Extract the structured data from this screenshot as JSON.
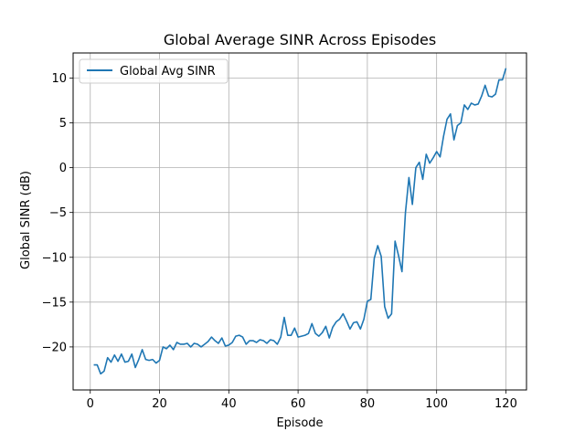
{
  "chart_data": {
    "type": "line",
    "title": "Global Average SINR Across Episodes",
    "xlabel": "Episode",
    "ylabel": "Global SINR (dB)",
    "xlim": [
      -4.95,
      125.95
    ],
    "ylim": [
      -24.8,
      12.8
    ],
    "xticks": [
      0,
      20,
      40,
      60,
      80,
      100,
      120
    ],
    "yticks": [
      -20,
      -15,
      -10,
      -5,
      0,
      5,
      10
    ],
    "grid": true,
    "legend": "top-left",
    "series": [
      {
        "name": "Global Avg SINR",
        "color": "#1f77b4",
        "x": [
          1,
          2,
          3,
          4,
          5,
          6,
          7,
          8,
          9,
          10,
          11,
          12,
          13,
          14,
          15,
          16,
          17,
          18,
          19,
          20,
          21,
          22,
          23,
          24,
          25,
          26,
          27,
          28,
          29,
          30,
          31,
          32,
          33,
          34,
          35,
          36,
          37,
          38,
          39,
          40,
          41,
          42,
          43,
          44,
          45,
          46,
          47,
          48,
          49,
          50,
          51,
          52,
          53,
          54,
          55,
          56,
          57,
          58,
          59,
          60,
          61,
          62,
          63,
          64,
          65,
          66,
          67,
          68,
          69,
          70,
          71,
          72,
          73,
          74,
          75,
          76,
          77,
          78,
          79,
          80,
          81,
          82,
          83,
          84,
          85,
          86,
          87,
          88,
          89,
          90,
          91,
          92,
          93,
          94,
          95,
          96,
          97,
          98,
          99,
          100,
          101,
          102,
          103,
          104,
          105,
          106,
          107,
          108,
          109,
          110,
          111,
          112,
          113,
          114,
          115,
          116,
          117,
          118,
          119,
          120
        ],
        "y": [
          -22.0,
          -22.0,
          -23.0,
          -22.7,
          -21.2,
          -21.7,
          -20.9,
          -21.6,
          -20.8,
          -21.7,
          -21.6,
          -20.8,
          -22.3,
          -21.4,
          -20.3,
          -21.4,
          -21.5,
          -21.4,
          -21.8,
          -21.5,
          -20.0,
          -20.2,
          -19.8,
          -20.3,
          -19.5,
          -19.7,
          -19.7,
          -19.6,
          -20.0,
          -19.6,
          -19.7,
          -20.0,
          -19.7,
          -19.4,
          -18.9,
          -19.3,
          -19.6,
          -19.0,
          -19.9,
          -19.8,
          -19.5,
          -18.8,
          -18.7,
          -18.9,
          -19.7,
          -19.3,
          -19.3,
          -19.5,
          -19.2,
          -19.3,
          -19.6,
          -19.2,
          -19.3,
          -19.7,
          -18.9,
          -16.7,
          -18.7,
          -18.7,
          -17.9,
          -18.9,
          -18.8,
          -18.7,
          -18.5,
          -17.4,
          -18.5,
          -18.8,
          -18.4,
          -17.7,
          -19.0,
          -17.8,
          -17.2,
          -16.9,
          -16.3,
          -17.1,
          -18.0,
          -17.3,
          -17.2,
          -18.0,
          -16.9,
          -14.9,
          -14.7,
          -10.1,
          -8.7,
          -9.9,
          -15.5,
          -16.8,
          -16.3,
          -8.2,
          -9.8,
          -11.6,
          -5.0,
          -1.1,
          -4.1,
          0.0,
          0.6,
          -1.3,
          1.5,
          0.5,
          1.1,
          1.8,
          1.2,
          3.5,
          5.4,
          6.0,
          3.1,
          4.7,
          5.0,
          7.0,
          6.5,
          7.2,
          7.0,
          7.1,
          8.0,
          9.2,
          8.0,
          7.9,
          8.2,
          9.8,
          9.8,
          11.1
        ]
      }
    ]
  }
}
